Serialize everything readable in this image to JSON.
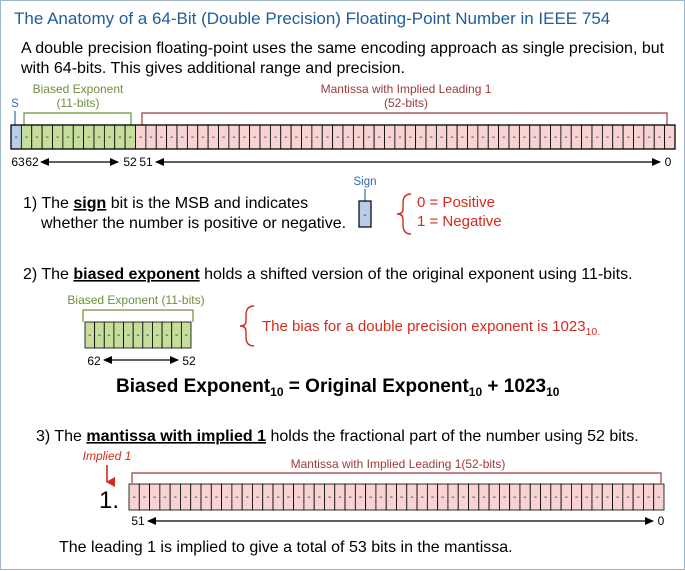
{
  "title": "The Anatomy of a 64-Bit (Double Precision) Floating-Point Number in IEEE 754",
  "intro": {
    "line1": "A double precision floating-point uses the same encoding approach as single precision, but",
    "line2": "with 64-bits.  This gives additional range and precision."
  },
  "top_diagram": {
    "sign_label": "S",
    "exponent_label_1": "Biased Exponent",
    "exponent_label_2": "(11-bits)",
    "mantissa_label_1": "Mantissa with Implied Leading 1",
    "mantissa_label_2": "(52-bits)",
    "bit_placeholder": "-",
    "tick_63": "63",
    "tick_62": "62",
    "tick_52": "52",
    "tick_51": "51",
    "tick_0": "0",
    "colors": {
      "sign": "#b8cde8",
      "exponent": "#c7dd9c",
      "mantissa": "#f7d3d3"
    }
  },
  "section1": {
    "prefix": "1) The ",
    "term": "sign",
    "suffix": " bit is the MSB and indicates",
    "line2": "whether the number is positive or negative.",
    "sign_box_label": "Sign",
    "zero": "0 = Positive",
    "one": "1 = Negative"
  },
  "section2": {
    "prefix": "2) The ",
    "term": "biased exponent",
    "suffix": " holds a shifted version of the original exponent using 11-bits.",
    "box_label": "Biased Exponent (11-bits)",
    "tick_62": "62",
    "tick_52": "52",
    "bias_note_main": "The bias for a double precision exponent is 1023",
    "bias_note_sub": "10.",
    "equation": {
      "part1": "Biased Exponent",
      "sub1": "10",
      "part2": " = Original Exponent",
      "sub2": "10",
      "part3": " + 1023",
      "sub3": "10"
    }
  },
  "section3": {
    "prefix": "3) The ",
    "term": "mantissa with implied 1",
    "suffix": " holds the fractional part of the number using 52 bits.",
    "implied_label": "Implied 1",
    "leading_one": "1.",
    "box_label": "Mantissa with Implied Leading 1(52-bits)",
    "tick_51": "51",
    "tick_0": "0",
    "footer": "The leading 1 is implied to give a total of 53 bits in the mantissa."
  }
}
